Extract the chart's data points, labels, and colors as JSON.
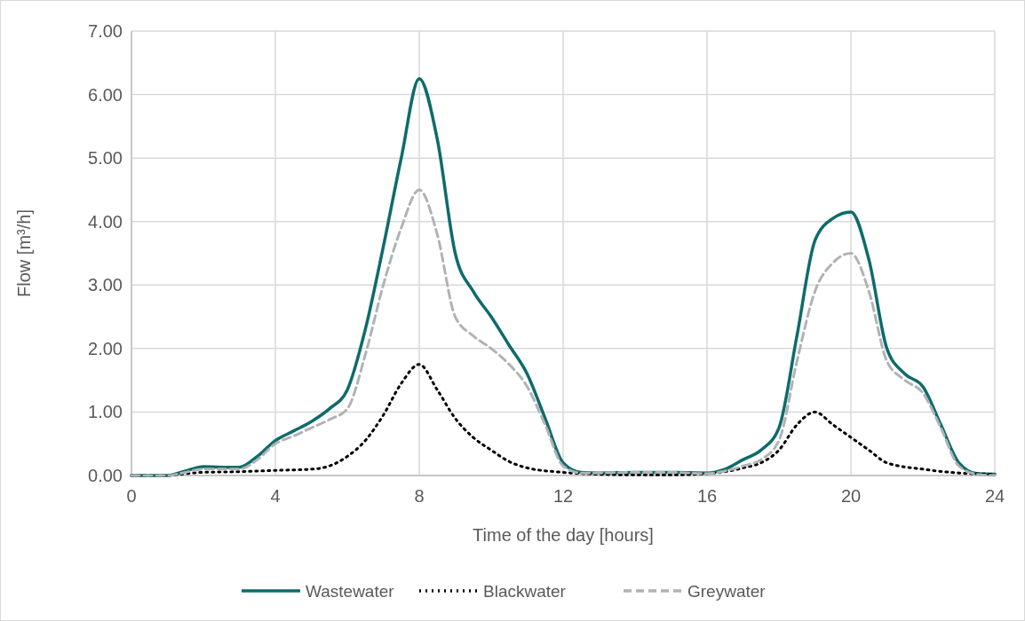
{
  "chart_data": {
    "type": "line",
    "xlabel": "Time of the day [hours]",
    "ylabel": "Flow [m³/h]",
    "xlim": [
      0,
      24
    ],
    "xticks": [
      0,
      4,
      8,
      12,
      16,
      20,
      24
    ],
    "ylim": [
      0,
      7
    ],
    "yticks": [
      {
        "value": 0,
        "label": "0.00"
      },
      {
        "value": 1,
        "label": "1.00"
      },
      {
        "value": 2,
        "label": "2.00"
      },
      {
        "value": 3,
        "label": "3.00"
      },
      {
        "value": 4,
        "label": "4.00"
      },
      {
        "value": 5,
        "label": "5.00"
      },
      {
        "value": 6,
        "label": "6.00"
      },
      {
        "value": 7,
        "label": "7.00"
      }
    ],
    "grid": true,
    "legend": "bottom",
    "series": [
      {
        "name": "Wastewater",
        "color": "#0e6b6b",
        "line_style": "solid",
        "x": [
          0,
          0.5,
          1,
          1.5,
          2,
          2.5,
          3,
          3.5,
          4,
          4.5,
          5,
          5.5,
          6,
          6.5,
          7,
          7.5,
          8,
          8.5,
          9,
          9.5,
          10,
          10.5,
          11,
          11.5,
          12,
          12.5,
          13,
          14,
          15,
          16,
          16.5,
          17,
          17.5,
          18,
          18.5,
          19,
          19.5,
          20,
          20.5,
          21,
          21.5,
          22,
          22.5,
          23,
          23.5,
          24
        ],
        "values": [
          0,
          0,
          0,
          0.07,
          0.14,
          0.13,
          0.13,
          0.3,
          0.55,
          0.7,
          0.85,
          1.05,
          1.35,
          2.3,
          3.6,
          5.0,
          6.25,
          5.3,
          3.5,
          2.9,
          2.5,
          2.05,
          1.6,
          0.9,
          0.2,
          0.05,
          0.04,
          0.05,
          0.05,
          0.04,
          0.1,
          0.25,
          0.4,
          0.75,
          2.2,
          3.7,
          4.05,
          4.15,
          3.4,
          2.0,
          1.6,
          1.4,
          0.8,
          0.2,
          0.03,
          0.02
        ]
      },
      {
        "name": "Blackwater",
        "color": "#000000",
        "line_style": "dotted",
        "x": [
          0,
          1,
          1.5,
          2,
          3,
          4,
          5,
          5.5,
          6,
          6.5,
          7,
          7.5,
          8,
          8.5,
          9,
          9.5,
          10,
          10.5,
          11,
          12,
          13,
          14,
          15,
          16,
          16.5,
          17,
          17.5,
          18,
          18.5,
          19,
          19.5,
          20,
          20.5,
          21,
          22,
          23,
          24
        ],
        "values": [
          0,
          0,
          0.03,
          0.05,
          0.06,
          0.08,
          0.1,
          0.15,
          0.3,
          0.55,
          0.95,
          1.45,
          1.75,
          1.35,
          0.9,
          0.6,
          0.4,
          0.22,
          0.12,
          0.05,
          0.02,
          0.01,
          0.01,
          0.03,
          0.06,
          0.12,
          0.2,
          0.4,
          0.8,
          1.0,
          0.8,
          0.6,
          0.4,
          0.2,
          0.1,
          0.04,
          0.02
        ]
      },
      {
        "name": "Greywater",
        "color": "#b0b3b5",
        "line_style": "dashed",
        "x": [
          0,
          1,
          1.5,
          2,
          2.5,
          3,
          3.5,
          4,
          4.5,
          5,
          5.5,
          6,
          6.5,
          7,
          7.5,
          8,
          8.5,
          9,
          9.5,
          10,
          10.5,
          11,
          11.5,
          12,
          12.5,
          13,
          14,
          15,
          16,
          16.5,
          17,
          17.5,
          18,
          18.5,
          19,
          19.5,
          20,
          20.5,
          21,
          21.5,
          22,
          22.5,
          23,
          23.5,
          24
        ],
        "values": [
          0,
          0,
          0.05,
          0.1,
          0.1,
          0.1,
          0.25,
          0.5,
          0.62,
          0.75,
          0.88,
          1.05,
          1.9,
          3.0,
          3.9,
          4.5,
          3.8,
          2.5,
          2.2,
          2.0,
          1.75,
          1.4,
          0.8,
          0.15,
          0.04,
          0.04,
          0.05,
          0.05,
          0.03,
          0.07,
          0.15,
          0.25,
          0.55,
          1.8,
          2.9,
          3.35,
          3.5,
          2.9,
          1.8,
          1.5,
          1.3,
          0.75,
          0.15,
          0.02,
          0
        ]
      }
    ]
  }
}
